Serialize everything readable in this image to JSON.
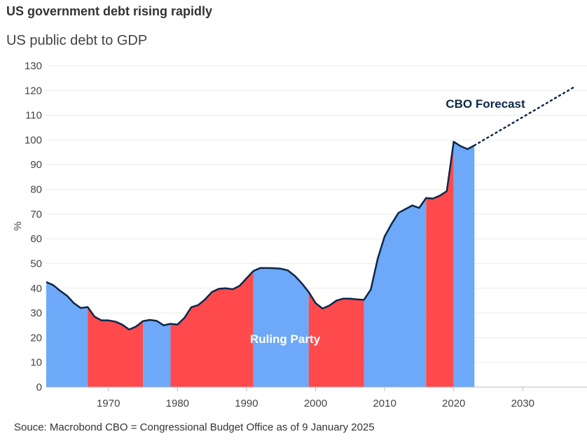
{
  "title": "US government debt rising rapidly",
  "subtitle": "US public debt to GDP",
  "source": "Souce: Macrobond CBO = Congressional Budget Office as of 9 January 2025",
  "chart_data": {
    "type": "area",
    "title": "US government debt rising rapidly",
    "subtitle": "US public debt to GDP",
    "ylabel": "%",
    "xlabel": "",
    "ylim": [
      0,
      130
    ],
    "xlim": [
      1961,
      2039.3
    ],
    "yticks": [
      0,
      10,
      20,
      30,
      40,
      50,
      60,
      70,
      80,
      90,
      100,
      110,
      120,
      130
    ],
    "xticks": [
      1970,
      1980,
      1990,
      2000,
      2010,
      2020,
      2030
    ],
    "grid": true,
    "series": [
      {
        "x": [
          1961,
          1962,
          1963,
          1964,
          1965,
          1966,
          1967,
          1968,
          1969,
          1970,
          1971,
          1972,
          1973,
          1974,
          1975,
          1976,
          1977,
          1978,
          1979,
          1980,
          1981,
          1982,
          1983,
          1984,
          1985,
          1986,
          1987,
          1988,
          1989,
          1990,
          1991,
          1992,
          1993,
          1994,
          1995,
          1996,
          1997,
          1998,
          1999,
          2000,
          2001,
          2002,
          2003,
          2004,
          2005,
          2006,
          2007,
          2008,
          2009,
          2010,
          2011,
          2012,
          2013,
          2014,
          2015,
          2016,
          2017,
          2018,
          2019,
          2020,
          2021,
          2022,
          2023
        ],
        "values": [
          42.5,
          41.3,
          39,
          37,
          34,
          32,
          32.4,
          28.5,
          27,
          27,
          26.5,
          25.3,
          23.3,
          24.5,
          26.7,
          27.2,
          26.8,
          25,
          25.6,
          25.3,
          28,
          32.3,
          33.2,
          35.5,
          38.5,
          39.8,
          40,
          39.6,
          41,
          44,
          47,
          48.2,
          48.2,
          48.1,
          47.9,
          47.2,
          45,
          42,
          38.5,
          34,
          31.8,
          33,
          35,
          35.8,
          35.8,
          35.5,
          35.3,
          39.5,
          52,
          61,
          66,
          70.5,
          72,
          73.5,
          72.5,
          76.5,
          76.3,
          77.5,
          79.3,
          99.3,
          97.5,
          96.3,
          97.8
        ]
      }
    ],
    "forecast": {
      "label": "CBO Forecast",
      "x": [
        2023,
        2037.5
      ],
      "values": [
        97.8,
        121.5
      ]
    },
    "shading": {
      "label": "Ruling Party",
      "colors": {
        "blue": "#6ea8f8",
        "red": "#ff4a4d"
      },
      "periods": [
        {
          "from": 1961,
          "to": 1967,
          "party": "blue"
        },
        {
          "from": 1967,
          "to": 1975,
          "party": "red"
        },
        {
          "from": 1975,
          "to": 1979,
          "party": "blue"
        },
        {
          "from": 1979,
          "to": 1991,
          "party": "red"
        },
        {
          "from": 1991,
          "to": 1999,
          "party": "blue"
        },
        {
          "from": 1999,
          "to": 2007,
          "party": "red"
        },
        {
          "from": 2007,
          "to": 2016,
          "party": "blue"
        },
        {
          "from": 2016,
          "to": 2020,
          "party": "red"
        },
        {
          "from": 2020,
          "to": 2023,
          "party": "blue"
        }
      ]
    },
    "line_color": "#0c2746"
  }
}
